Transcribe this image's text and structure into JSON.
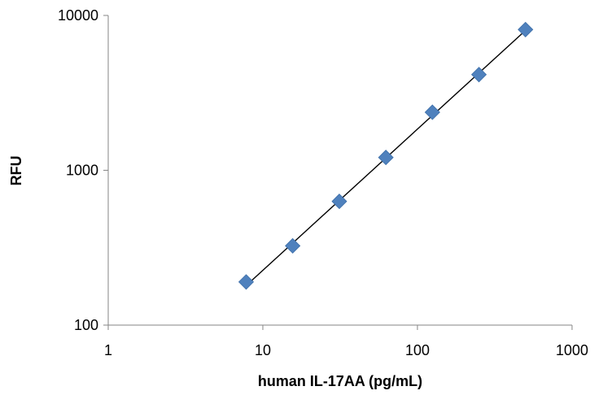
{
  "chart_data": {
    "type": "scatter",
    "title": "",
    "xlabel": "human IL-17AA (pg/mL)",
    "ylabel": "RFU",
    "x_scale": "log",
    "y_scale": "log",
    "xlim": [
      1,
      1000
    ],
    "ylim": [
      100,
      10000
    ],
    "x_ticks": [
      1,
      10,
      100,
      1000
    ],
    "y_ticks": [
      100,
      1000,
      10000
    ],
    "x_tick_labels": [
      "1",
      "10",
      "100",
      "1000"
    ],
    "y_tick_labels": [
      "100",
      "1000",
      "10000"
    ],
    "grid": false,
    "legend": "none",
    "series": [
      {
        "marker": "diamond",
        "color": "#4F81BD",
        "x": [
          7.8,
          15.6,
          31.25,
          62.5,
          125,
          250,
          500
        ],
        "y": [
          190,
          325,
          630,
          1210,
          2370,
          4150,
          8100
        ]
      }
    ],
    "trendline": {
      "color": "#000000",
      "x": [
        7.8,
        500
      ],
      "y": [
        180,
        8000
      ]
    }
  }
}
